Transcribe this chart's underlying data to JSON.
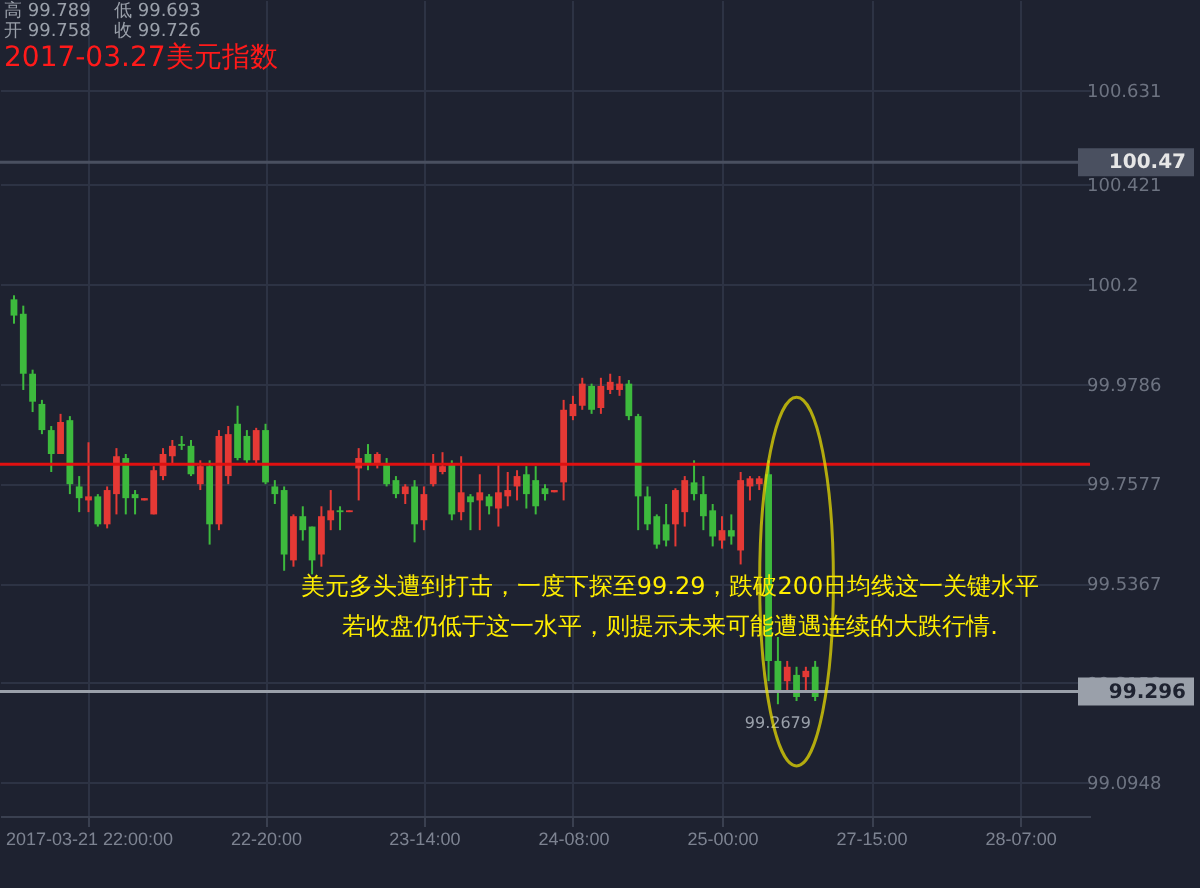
{
  "chart_data": {
    "type": "candlestick",
    "title": "2017-03.27美元指数",
    "categories": [
      null,
      null,
      null,
      null,
      null,
      null,
      null,
      null,
      null,
      "2017-03-21 22:00:00",
      null,
      null,
      null,
      null,
      null,
      null,
      null,
      null,
      null,
      null,
      null,
      null,
      null,
      null,
      null,
      null,
      null,
      null,
      "22-20:00",
      null,
      null,
      null,
      null,
      null,
      null,
      null,
      null,
      null,
      null,
      null,
      null,
      null,
      null,
      null,
      null,
      "23-14:00",
      null,
      null,
      null,
      null,
      null,
      null,
      null,
      null,
      null,
      null,
      null,
      null,
      null,
      null,
      null,
      "24-08:00",
      null,
      null,
      null,
      null,
      null,
      null,
      null,
      null,
      null,
      null,
      null,
      null,
      null,
      null,
      null,
      "25-00:00",
      null,
      null,
      null,
      null,
      null,
      null,
      null,
      null,
      null,
      null,
      null,
      null,
      null,
      null,
      null,
      "27-15:00",
      null,
      null,
      null,
      null,
      null,
      null,
      null,
      null,
      null,
      null,
      null,
      null,
      null,
      null,
      null,
      "28-07:00",
      null,
      null,
      null,
      null,
      null,
      null,
      null
    ],
    "ohlc": [
      null,
      [
        100.166,
        100.175,
        100.112,
        100.13
      ],
      [
        100.134,
        100.152,
        99.965,
        100.001
      ],
      [
        100.001,
        100.01,
        99.916,
        99.939
      ],
      [
        99.934,
        99.943,
        99.867,
        99.876
      ],
      [
        99.876,
        99.885,
        99.783,
        99.823
      ],
      [
        99.823,
        99.912,
        99.823,
        99.894
      ],
      [
        99.898,
        99.907,
        99.734,
        99.756
      ],
      [
        99.751,
        99.774,
        99.694,
        99.725
      ],
      [
        99.72,
        99.849,
        99.694,
        99.729
      ],
      [
        99.729,
        99.734,
        99.662,
        99.667
      ],
      [
        99.667,
        99.751,
        99.658,
        99.743
      ],
      [
        99.734,
        99.836,
        99.689,
        99.818
      ],
      [
        99.814,
        99.823,
        99.689,
        99.725
      ],
      [
        99.734,
        99.743,
        99.689,
        99.725
      ],
      [
        99.72,
        99.725,
        99.72,
        99.725
      ],
      [
        99.689,
        99.796,
        99.689,
        99.787
      ],
      [
        99.774,
        99.836,
        99.765,
        99.823
      ],
      [
        99.818,
        99.854,
        99.8,
        99.841
      ],
      [
        99.845,
        99.863,
        99.832,
        99.841
      ],
      [
        99.841,
        99.854,
        99.774,
        99.778
      ],
      [
        99.756,
        99.809,
        99.743,
        99.796
      ],
      [
        99.796,
        99.809,
        99.622,
        99.667
      ],
      [
        99.667,
        99.876,
        99.654,
        99.863
      ],
      [
        99.774,
        99.885,
        99.756,
        99.867
      ],
      [
        99.89,
        99.93,
        99.809,
        99.814
      ],
      [
        99.863,
        99.876,
        99.8,
        99.809
      ],
      [
        99.809,
        99.881,
        99.8,
        99.876
      ],
      [
        99.876,
        99.89,
        99.756,
        99.76
      ],
      [
        99.751,
        99.765,
        99.712,
        99.734
      ],
      [
        99.743,
        99.751,
        99.564,
        99.6
      ],
      [
        99.587,
        99.689,
        99.573,
        99.685
      ],
      [
        99.685,
        99.707,
        99.631,
        99.654
      ],
      [
        99.662,
        99.662,
        99.556,
        99.587
      ],
      [
        99.6,
        99.707,
        99.573,
        99.685
      ],
      [
        99.676,
        99.743,
        99.654,
        99.698
      ],
      [
        99.698,
        99.707,
        99.654,
        99.694
      ],
      [
        99.694,
        99.698,
        99.694,
        99.698
      ],
      [
        99.791,
        99.836,
        99.72,
        99.814
      ],
      [
        99.823,
        99.845,
        99.787,
        99.8
      ],
      [
        99.8,
        99.827,
        99.791,
        99.823
      ],
      [
        99.8,
        99.814,
        99.751,
        99.756
      ],
      [
        99.765,
        99.774,
        99.725,
        99.734
      ],
      [
        99.734,
        99.756,
        99.712,
        99.751
      ],
      [
        99.751,
        99.765,
        99.627,
        99.667
      ],
      [
        99.676,
        99.751,
        99.654,
        99.734
      ],
      [
        99.756,
        99.823,
        99.751,
        99.8
      ],
      [
        99.783,
        99.827,
        99.778,
        99.796
      ],
      [
        99.8,
        99.809,
        99.676,
        99.689
      ],
      [
        99.694,
        99.818,
        99.676,
        99.738
      ],
      [
        99.729,
        99.734,
        99.654,
        99.716
      ],
      [
        99.72,
        99.778,
        99.654,
        99.738
      ],
      [
        99.729,
        99.734,
        99.689,
        99.707
      ],
      [
        99.702,
        99.8,
        99.662,
        99.738
      ],
      [
        99.729,
        99.783,
        99.707,
        99.743
      ],
      [
        99.751,
        99.787,
        99.72,
        99.774
      ],
      [
        99.778,
        99.796,
        99.702,
        99.734
      ],
      [
        99.765,
        99.796,
        99.689,
        99.707
      ],
      [
        99.747,
        99.756,
        99.72,
        99.734
      ],
      [
        99.738,
        99.743,
        99.738,
        99.743
      ],
      [
        99.76,
        99.943,
        99.72,
        99.921
      ],
      [
        99.907,
        99.952,
        99.898,
        99.934
      ],
      [
        99.93,
        99.992,
        99.921,
        99.979
      ],
      [
        99.974,
        99.979,
        99.912,
        99.921
      ],
      [
        99.925,
        99.992,
        99.912,
        99.974
      ],
      [
        99.965,
        100.001,
        99.956,
        99.983
      ],
      [
        99.965,
        99.996,
        99.952,
        99.979
      ],
      [
        99.979,
        99.987,
        99.898,
        99.907
      ],
      [
        99.907,
        99.912,
        99.654,
        99.729
      ],
      [
        99.729,
        99.751,
        99.654,
        99.667
      ],
      [
        99.685,
        99.689,
        99.613,
        99.622
      ],
      [
        99.667,
        99.712,
        99.618,
        99.631
      ],
      [
        99.667,
        99.747,
        99.618,
        99.743
      ],
      [
        99.694,
        99.774,
        99.662,
        99.765
      ],
      [
        99.76,
        99.809,
        99.72,
        99.734
      ],
      [
        99.734,
        99.774,
        99.654,
        99.685
      ],
      [
        99.698,
        99.712,
        99.618,
        99.64
      ],
      [
        99.631,
        99.685,
        99.613,
        99.654
      ],
      [
        99.654,
        99.689,
        99.622,
        99.64
      ],
      [
        99.609,
        99.783,
        99.578,
        99.765
      ],
      [
        99.751,
        99.774,
        99.72,
        99.769
      ],
      [
        99.756,
        99.774,
        99.743,
        99.769
      ],
      [
        99.778,
        99.809,
        99.319,
        99.364
      ],
      [
        99.364,
        99.417,
        99.2679,
        99.297
      ],
      [
        99.319,
        99.364,
        99.297,
        99.351
      ],
      [
        99.333,
        99.351,
        99.275,
        99.284
      ],
      [
        99.328,
        99.351,
        99.297,
        99.342
      ],
      [
        99.351,
        99.364,
        99.275,
        99.284
      ],
      null,
      null,
      null,
      null,
      null,
      null,
      null,
      null,
      null,
      null,
      null,
      null,
      null,
      null,
      null,
      null,
      null,
      null,
      null,
      null,
      null,
      null,
      null,
      null,
      null,
      null,
      null,
      null,
      null
    ],
    "colors": [
      null,
      "#3dba3d",
      "#3dba3d",
      "#3dba3d",
      "#3dba3d",
      "#3dba3d",
      "#e53935",
      "#3dba3d",
      "#3dba3d",
      "#e53935",
      "#3dba3d",
      "#e53935",
      "#e53935",
      "#3dba3d",
      "#3dba3d",
      "#e53935",
      "#e53935",
      "#e53935",
      "#e53935",
      "#3dba3d",
      "#3dba3d",
      "#e53935",
      "#3dba3d",
      "#e53935",
      "#e53935",
      "#3dba3d",
      "#3dba3d",
      "#e53935",
      "#3dba3d",
      "#3dba3d",
      "#3dba3d",
      "#e53935",
      "#3dba3d",
      "#3dba3d",
      "#e53935",
      "#e53935",
      "#3dba3d",
      "#e53935",
      "#e53935",
      "#3dba3d",
      "#e53935",
      "#3dba3d",
      "#3dba3d",
      "#e53935",
      "#3dba3d",
      "#e53935",
      "#e53935",
      "#e53935",
      "#3dba3d",
      "#e53935",
      "#3dba3d",
      "#e53935",
      "#3dba3d",
      "#e53935",
      "#e53935",
      "#e53935",
      "#3dba3d",
      "#3dba3d",
      "#3dba3d",
      "#e53935",
      "#e53935",
      "#e53935",
      "#e53935",
      "#3dba3d",
      "#e53935",
      "#e53935",
      "#e53935",
      "#3dba3d",
      "#3dba3d",
      "#3dba3d",
      "#3dba3d",
      "#3dba3d",
      "#e53935",
      "#e53935",
      "#3dba3d",
      "#3dba3d",
      "#3dba3d",
      "#e53935",
      "#3dba3d",
      "#e53935",
      "#e53935",
      "#e53935",
      "#3dba3d",
      "#3dba3d",
      "#e53935",
      "#3dba3d",
      "#e53935",
      "#3dba3d",
      null,
      null,
      null,
      null,
      null,
      null,
      null,
      null,
      null,
      null,
      null,
      null,
      null,
      null,
      null,
      null,
      null,
      null,
      null,
      null,
      null,
      null,
      null,
      null,
      null,
      null,
      null,
      null,
      null
    ],
    "ylim": [
      99.02,
      100.83
    ],
    "yticks": [
      99.0948,
      99.3158,
      99.5367,
      99.7577,
      99.9786,
      100.2,
      100.421,
      100.631
    ],
    "grid": true,
    "ref_lines": [
      {
        "axis": "y",
        "value": 99.296,
        "label": "99.296",
        "color": "#9aa0aa"
      },
      {
        "axis": "y",
        "value": 100.47,
        "label": "100.47",
        "color": "#4a5060"
      },
      {
        "axis": "y",
        "value": 99.8,
        "color": "#e01010"
      }
    ],
    "annotations": [
      "高 99.789",
      "开 99.758",
      "低 99.693",
      "收 99.726",
      "美元多头遭到打击，一度下探至99.29，跌破200日均线这一关键水平",
      "若收盘仍低于这一水平，则提示未来可能遭遇连续的大跌行情.",
      {
        "text": "99.2679",
        "y": 99.2679
      }
    ]
  }
}
